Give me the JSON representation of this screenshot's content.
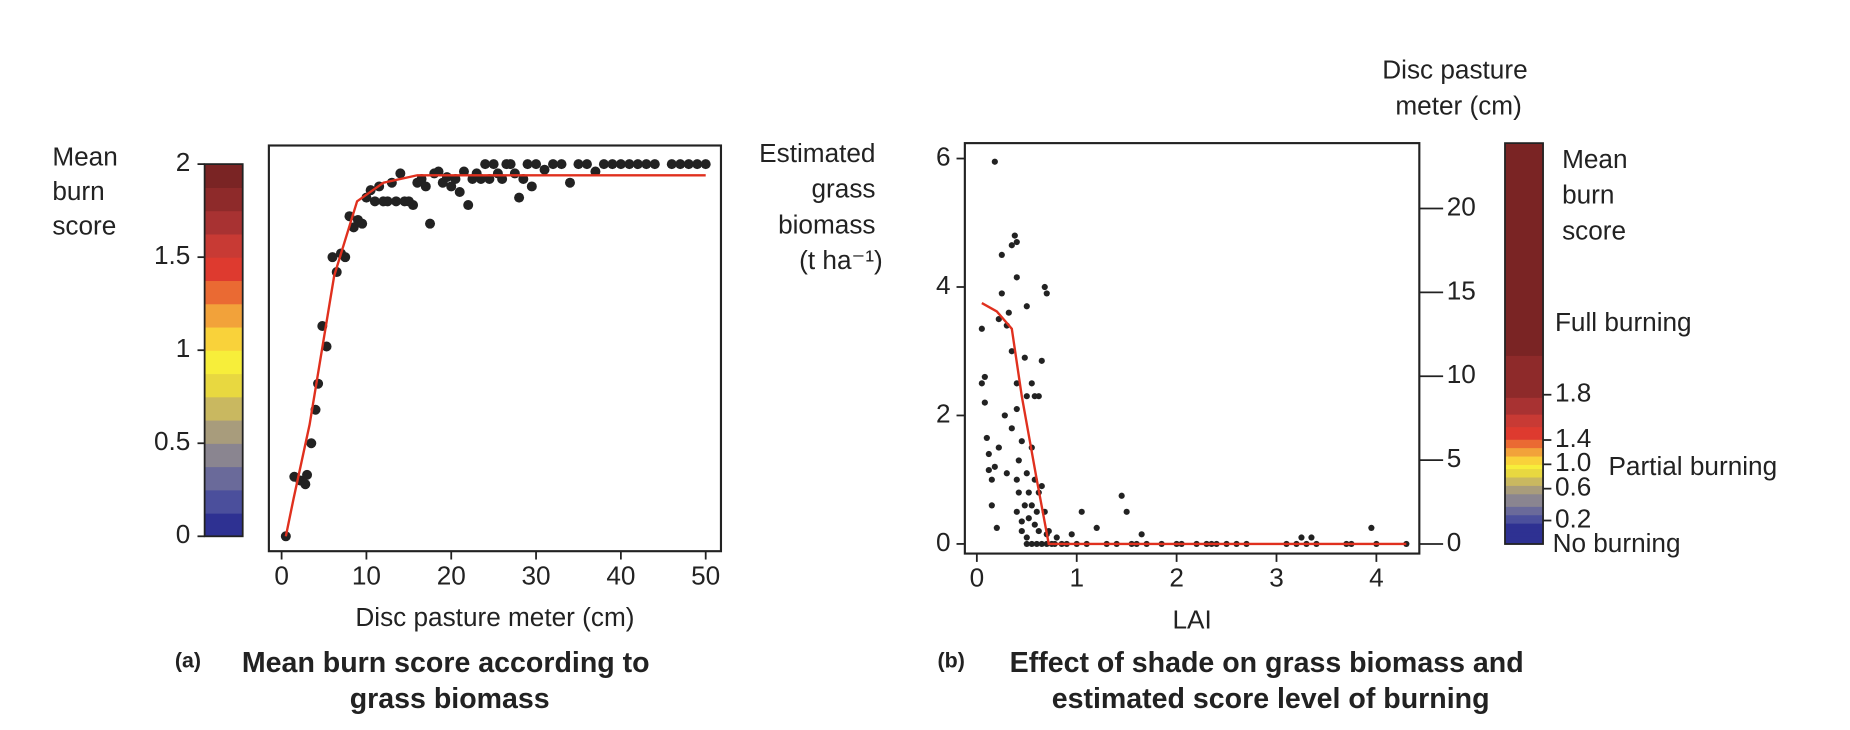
{
  "chart_data": [
    {
      "type": "scatter",
      "caption_label": "(a)",
      "title": "Mean burn score according to grass biomass",
      "xlabel": "Disc pasture meter (cm)",
      "colorbar": {
        "label": "Mean burn score",
        "colors": [
          "#2e3192",
          "#4b4f9c",
          "#6a6a9a",
          "#8a8590",
          "#a89c7c",
          "#c9b860",
          "#e8d840",
          "#f7ee3a",
          "#f9d23a",
          "#f2a23a",
          "#ea6a33",
          "#de3a2f",
          "#c83a34",
          "#a83232",
          "#8e2a2a",
          "#7a2424"
        ]
      },
      "x": [
        0.5,
        1.5,
        2.2,
        2.8,
        3,
        3.5,
        4,
        4.3,
        4.8,
        5.3,
        6,
        6.5,
        7,
        7.5,
        8,
        8.5,
        9,
        9.5,
        10,
        10.5,
        11,
        11.5,
        12,
        12.5,
        13,
        13.5,
        14,
        14.5,
        15,
        15.5,
        16,
        16.5,
        17,
        17.5,
        18,
        18.5,
        19,
        19.5,
        20,
        20.5,
        21,
        21.5,
        22,
        22.5,
        23,
        23.5,
        24,
        24.5,
        25,
        25.5,
        26,
        26.5,
        27,
        27.5,
        28,
        28.5,
        29,
        29.5,
        30,
        31,
        32,
        33,
        34,
        35,
        36,
        37,
        38,
        39,
        40,
        41,
        42,
        43,
        44,
        46,
        47,
        48,
        49,
        50
      ],
      "values": [
        0,
        0.32,
        0.3,
        0.28,
        0.33,
        0.5,
        0.68,
        0.82,
        1.13,
        1.02,
        1.5,
        1.42,
        1.52,
        1.5,
        1.72,
        1.66,
        1.7,
        1.68,
        1.82,
        1.86,
        1.8,
        1.88,
        1.8,
        1.8,
        1.9,
        1.8,
        1.95,
        1.8,
        1.8,
        1.78,
        1.9,
        1.92,
        1.88,
        1.68,
        1.95,
        1.96,
        1.9,
        1.93,
        1.88,
        1.92,
        1.85,
        1.96,
        1.78,
        1.92,
        1.95,
        1.92,
        2,
        1.92,
        2,
        1.95,
        1.92,
        2,
        2,
        1.95,
        1.82,
        1.92,
        2,
        1.88,
        2,
        1.97,
        2,
        2,
        1.9,
        2,
        2,
        1.96,
        2,
        2,
        2,
        2,
        2,
        2,
        2,
        2,
        2,
        2,
        2,
        2
      ],
      "color": "#222222",
      "fit": {
        "x": [
          0.5,
          1.4,
          3.3,
          4.75,
          6.2,
          8.9,
          12,
          16,
          20,
          50
        ],
        "values": [
          0,
          0.2,
          0.6,
          1,
          1.4,
          1.8,
          1.9,
          1.94,
          1.94,
          1.94
        ],
        "color": "#e0301e"
      },
      "xlim": [
        -1.5,
        51.8
      ],
      "ylim": [
        -0.08,
        2.1
      ],
      "xticks": [
        0,
        10,
        20,
        30,
        40,
        50
      ],
      "yticks": [
        0,
        0.5,
        1,
        1.5,
        2
      ]
    },
    {
      "type": "scatter",
      "caption_label": "(b)",
      "title": "Effect of shade on grass biomass and estimated score level of burning",
      "xlabel": "LAI",
      "ylabel": "Estimated grass biomass (t ha⁻¹)",
      "y2label": "Disc pasture meter (cm)",
      "colorbar": {
        "label": "Mean burn score",
        "ticks": [
          0.2,
          0.6,
          {
            "value": 1,
            "label": "1.0"
          },
          1.4,
          1.8
        ],
        "annotations": [
          "Full burning",
          "Partial burning",
          "No burning"
        ]
      },
      "x": [
        0.05,
        0.05,
        0.08,
        0.08,
        0.1,
        0.12,
        0.12,
        0.15,
        0.15,
        0.18,
        0.18,
        0.2,
        0.22,
        0.22,
        0.25,
        0.25,
        0.28,
        0.3,
        0.3,
        0.32,
        0.35,
        0.35,
        0.35,
        0.38,
        0.4,
        0.4,
        0.4,
        0.4,
        0.4,
        0.4,
        0.42,
        0.42,
        0.45,
        0.45,
        0.45,
        0.48,
        0.48,
        0.5,
        0.5,
        0.5,
        0.5,
        0.5,
        0.52,
        0.52,
        0.55,
        0.55,
        0.55,
        0.55,
        0.58,
        0.58,
        0.58,
        0.6,
        0.6,
        0.62,
        0.62,
        0.62,
        0.65,
        0.65,
        0.65,
        0.68,
        0.68,
        0.7,
        0.7,
        0.7,
        0.72,
        0.75,
        0.78,
        0.8,
        0.85,
        0.9,
        0.95,
        1,
        1.05,
        1.1,
        1.2,
        1.3,
        1.4,
        1.45,
        1.5,
        1.55,
        1.6,
        1.65,
        1.7,
        1.85,
        2,
        2.05,
        2.2,
        2.3,
        2.35,
        2.4,
        2.5,
        2.6,
        2.7,
        3.1,
        3.2,
        3.25,
        3.3,
        3.35,
        3.4,
        3.7,
        3.75,
        3.95,
        4,
        4.3
      ],
      "values": [
        3.35,
        2.5,
        2.2,
        2.6,
        1.65,
        1.4,
        1.15,
        1,
        0.6,
        1.2,
        5.95,
        0.25,
        1.5,
        3.5,
        4.5,
        3.9,
        2,
        3.4,
        1.1,
        3.6,
        4.65,
        3,
        1.8,
        4.8,
        4.7,
        4.15,
        2.5,
        2.1,
        1,
        0.5,
        1.3,
        0.8,
        1.6,
        0.35,
        0.2,
        2.9,
        0.6,
        3.7,
        2.3,
        1.1,
        0.1,
        0,
        0.8,
        0.4,
        2.5,
        1.5,
        0.6,
        0,
        2.3,
        1,
        0.3,
        0.5,
        0,
        2.3,
        0.8,
        0.2,
        2.85,
        0.9,
        0,
        4,
        0.5,
        3.9,
        0.15,
        0,
        0.2,
        0,
        0,
        0.1,
        0,
        0,
        0.15,
        0,
        0.5,
        0,
        0.25,
        0,
        0,
        0.75,
        0.5,
        0,
        0,
        0.15,
        0,
        0,
        0,
        0,
        0,
        0,
        0,
        0,
        0,
        0,
        0,
        0,
        0,
        0.1,
        0,
        0.1,
        0,
        0,
        0,
        0.25,
        0,
        0
      ],
      "color": "#222222",
      "fit": {
        "x": [
          0.05,
          0.2,
          0.35,
          0.45,
          0.6,
          0.72,
          4.3
        ],
        "values": [
          3.75,
          3.62,
          3.35,
          2.3,
          1,
          0,
          0
        ],
        "color": "#e0301e"
      },
      "xlim": [
        -0.12,
        4.43
      ],
      "ylim": [
        -0.15,
        6.24
      ],
      "y2lim": [
        -0.57,
        23.9
      ],
      "xticks": [
        0,
        1,
        2,
        3,
        4
      ],
      "yticks": [
        0,
        2,
        4,
        6
      ],
      "y2ticks": [
        0,
        5,
        10,
        15,
        20
      ]
    }
  ]
}
